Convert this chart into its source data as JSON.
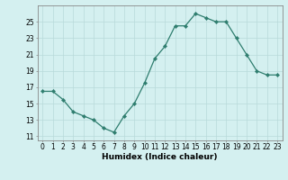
{
  "x": [
    0,
    1,
    2,
    3,
    4,
    5,
    6,
    7,
    8,
    9,
    10,
    11,
    12,
    13,
    14,
    15,
    16,
    17,
    18,
    19,
    20,
    21,
    22,
    23
  ],
  "y": [
    16.5,
    16.5,
    15.5,
    14.0,
    13.5,
    13.0,
    12.0,
    11.5,
    13.5,
    15.0,
    17.5,
    20.5,
    22.0,
    24.5,
    24.5,
    26.0,
    25.5,
    25.0,
    25.0,
    23.0,
    21.0,
    19.0,
    18.5,
    18.5
  ],
  "xlabel": "Humidex (Indice chaleur)",
  "ylim": [
    10.5,
    27
  ],
  "xlim": [
    -0.5,
    23.5
  ],
  "yticks": [
    11,
    13,
    15,
    17,
    19,
    21,
    23,
    25
  ],
  "xticks": [
    0,
    1,
    2,
    3,
    4,
    5,
    6,
    7,
    8,
    9,
    10,
    11,
    12,
    13,
    14,
    15,
    16,
    17,
    18,
    19,
    20,
    21,
    22,
    23
  ],
  "line_color": "#2e7d6e",
  "marker_color": "#2e7d6e",
  "bg_color": "#d4f0f0",
  "grid_color": "#b8dada",
  "axis_color": "#888888",
  "tick_label_fontsize": 5.5,
  "xlabel_fontsize": 6.5,
  "marker_size": 2.2,
  "linewidth": 0.9
}
